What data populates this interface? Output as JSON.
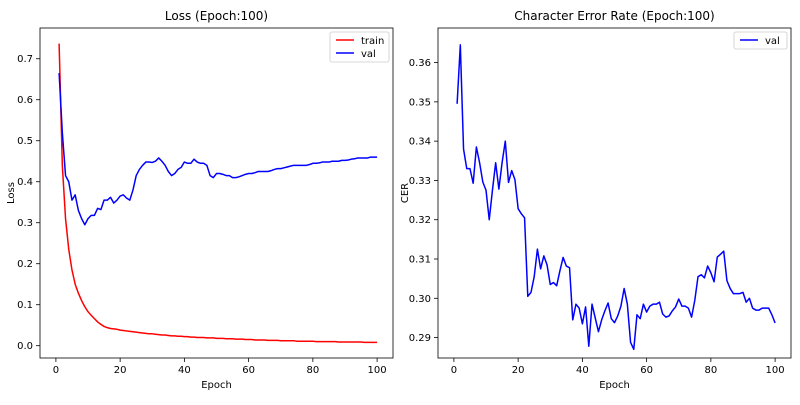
{
  "colors": {
    "train": "#ff0000",
    "val": "#0000ff",
    "frame": "#000000",
    "legend_frame": "#cccccc"
  },
  "chart_data": [
    {
      "type": "line",
      "title": "Loss (Epoch:100)",
      "xlabel": "Epoch",
      "ylabel": "Loss",
      "xlim": [
        -4.95,
        104.95
      ],
      "ylim": [
        -0.03,
        0.775
      ],
      "xticks": [
        0,
        20,
        40,
        60,
        80,
        100
      ],
      "xtick_labels": [
        "0",
        "20",
        "40",
        "60",
        "80",
        "100"
      ],
      "yticks": [
        0.0,
        0.1,
        0.2,
        0.3,
        0.4,
        0.5,
        0.6,
        0.7
      ],
      "ytick_labels": [
        "0.0",
        "0.1",
        "0.2",
        "0.3",
        "0.4",
        "0.5",
        "0.6",
        "0.7"
      ],
      "grid": false,
      "legend_position": "top-right",
      "series": [
        {
          "name": "train",
          "color": "#ff0000",
          "x": [
            1,
            2,
            3,
            4,
            5,
            6,
            7,
            8,
            9,
            10,
            11,
            12,
            13,
            14,
            15,
            16,
            17,
            18,
            19,
            20,
            21,
            22,
            23,
            24,
            25,
            26,
            27,
            28,
            29,
            30,
            31,
            32,
            33,
            34,
            35,
            36,
            37,
            38,
            39,
            40,
            41,
            42,
            43,
            44,
            45,
            46,
            47,
            48,
            49,
            50,
            51,
            52,
            53,
            54,
            55,
            56,
            57,
            58,
            59,
            60,
            61,
            62,
            63,
            64,
            65,
            66,
            67,
            68,
            69,
            70,
            71,
            72,
            73,
            74,
            75,
            76,
            77,
            78,
            79,
            80,
            81,
            82,
            83,
            84,
            85,
            86,
            87,
            88,
            89,
            90,
            91,
            92,
            93,
            94,
            95,
            96,
            97,
            98,
            99,
            100
          ],
          "y": [
            0.737,
            0.44,
            0.31,
            0.235,
            0.185,
            0.15,
            0.128,
            0.11,
            0.095,
            0.083,
            0.074,
            0.066,
            0.058,
            0.052,
            0.047,
            0.044,
            0.042,
            0.041,
            0.04,
            0.038,
            0.037,
            0.036,
            0.035,
            0.034,
            0.033,
            0.032,
            0.031,
            0.03,
            0.029,
            0.029,
            0.028,
            0.027,
            0.026,
            0.026,
            0.025,
            0.024,
            0.024,
            0.023,
            0.023,
            0.022,
            0.022,
            0.021,
            0.021,
            0.02,
            0.02,
            0.02,
            0.019,
            0.019,
            0.019,
            0.018,
            0.018,
            0.018,
            0.017,
            0.017,
            0.017,
            0.016,
            0.016,
            0.016,
            0.015,
            0.015,
            0.015,
            0.014,
            0.014,
            0.014,
            0.014,
            0.013,
            0.013,
            0.013,
            0.013,
            0.012,
            0.012,
            0.012,
            0.012,
            0.012,
            0.011,
            0.011,
            0.011,
            0.011,
            0.011,
            0.011,
            0.01,
            0.01,
            0.01,
            0.01,
            0.01,
            0.01,
            0.01,
            0.009,
            0.009,
            0.009,
            0.009,
            0.009,
            0.009,
            0.009,
            0.009,
            0.008,
            0.008,
            0.008,
            0.008,
            0.008
          ]
        },
        {
          "name": "val",
          "color": "#0000ff",
          "x": [
            1,
            2,
            3,
            4,
            5,
            6,
            7,
            8,
            9,
            10,
            11,
            12,
            13,
            14,
            15,
            16,
            17,
            18,
            19,
            20,
            21,
            22,
            23,
            24,
            25,
            26,
            27,
            28,
            29,
            30,
            31,
            32,
            33,
            34,
            35,
            36,
            37,
            38,
            39,
            40,
            41,
            42,
            43,
            44,
            45,
            46,
            47,
            48,
            49,
            50,
            51,
            52,
            53,
            54,
            55,
            56,
            57,
            58,
            59,
            60,
            61,
            62,
            63,
            64,
            65,
            66,
            67,
            68,
            69,
            70,
            71,
            72,
            73,
            74,
            75,
            76,
            77,
            78,
            79,
            80,
            81,
            82,
            83,
            84,
            85,
            86,
            87,
            88,
            89,
            90,
            91,
            92,
            93,
            94,
            95,
            96,
            97,
            98,
            99,
            100
          ],
          "y": [
            0.665,
            0.52,
            0.415,
            0.4,
            0.355,
            0.368,
            0.33,
            0.31,
            0.295,
            0.31,
            0.318,
            0.318,
            0.335,
            0.332,
            0.355,
            0.355,
            0.362,
            0.348,
            0.355,
            0.365,
            0.368,
            0.36,
            0.355,
            0.38,
            0.415,
            0.43,
            0.44,
            0.448,
            0.448,
            0.447,
            0.45,
            0.458,
            0.45,
            0.44,
            0.425,
            0.415,
            0.42,
            0.43,
            0.435,
            0.448,
            0.445,
            0.445,
            0.455,
            0.448,
            0.445,
            0.445,
            0.44,
            0.415,
            0.41,
            0.42,
            0.42,
            0.418,
            0.415,
            0.415,
            0.41,
            0.41,
            0.412,
            0.415,
            0.418,
            0.42,
            0.42,
            0.422,
            0.425,
            0.425,
            0.425,
            0.425,
            0.427,
            0.43,
            0.432,
            0.432,
            0.434,
            0.436,
            0.438,
            0.44,
            0.44,
            0.44,
            0.44,
            0.44,
            0.442,
            0.445,
            0.445,
            0.446,
            0.448,
            0.448,
            0.448,
            0.45,
            0.45,
            0.45,
            0.452,
            0.452,
            0.453,
            0.455,
            0.456,
            0.458,
            0.458,
            0.458,
            0.458,
            0.46,
            0.46,
            0.46
          ]
        }
      ]
    },
    {
      "type": "line",
      "title": "Character Error Rate (Epoch:100)",
      "xlabel": "Epoch",
      "ylabel": "CER",
      "xlim": [
        -4.95,
        104.95
      ],
      "ylim": [
        0.2848,
        0.3688
      ],
      "xticks": [
        0,
        20,
        40,
        60,
        80,
        100
      ],
      "xtick_labels": [
        "0",
        "20",
        "40",
        "60",
        "80",
        "100"
      ],
      "yticks": [
        0.29,
        0.3,
        0.31,
        0.32,
        0.33,
        0.34,
        0.35,
        0.36
      ],
      "ytick_labels": [
        "0.29",
        "0.30",
        "0.31",
        "0.32",
        "0.33",
        "0.34",
        "0.35",
        "0.36"
      ],
      "grid": false,
      "legend_position": "top-right",
      "series": [
        {
          "name": "val",
          "color": "#0000ff",
          "x": [
            1,
            2,
            3,
            4,
            5,
            6,
            7,
            8,
            9,
            10,
            11,
            12,
            13,
            14,
            15,
            16,
            17,
            18,
            19,
            20,
            21,
            22,
            23,
            24,
            25,
            26,
            27,
            28,
            29,
            30,
            31,
            32,
            33,
            34,
            35,
            36,
            37,
            38,
            39,
            40,
            41,
            42,
            43,
            44,
            45,
            46,
            47,
            48,
            49,
            50,
            51,
            52,
            53,
            54,
            55,
            56,
            57,
            58,
            59,
            60,
            61,
            62,
            63,
            64,
            65,
            66,
            67,
            68,
            69,
            70,
            71,
            72,
            73,
            74,
            75,
            76,
            77,
            78,
            79,
            80,
            81,
            82,
            83,
            84,
            85,
            86,
            87,
            88,
            89,
            90,
            91,
            92,
            93,
            94,
            95,
            96,
            97,
            98,
            99,
            100
          ],
          "y": [
            0.3495,
            0.3645,
            0.338,
            0.333,
            0.333,
            0.3293,
            0.3385,
            0.3345,
            0.3296,
            0.3275,
            0.32,
            0.3275,
            0.3345,
            0.3278,
            0.3345,
            0.34,
            0.3295,
            0.3325,
            0.3302,
            0.3228,
            0.3215,
            0.3205,
            0.3005,
            0.3015,
            0.3055,
            0.3125,
            0.3075,
            0.3108,
            0.3085,
            0.3035,
            0.304,
            0.3032,
            0.307,
            0.3104,
            0.3082,
            0.3078,
            0.2945,
            0.2985,
            0.2975,
            0.2935,
            0.2978,
            0.2878,
            0.2985,
            0.295,
            0.2915,
            0.2945,
            0.2968,
            0.2988,
            0.2948,
            0.2938,
            0.2955,
            0.298,
            0.3025,
            0.2985,
            0.2888,
            0.287,
            0.2958,
            0.2948,
            0.2985,
            0.2965,
            0.298,
            0.2985,
            0.2985,
            0.299,
            0.296,
            0.2952,
            0.2955,
            0.2968,
            0.2978,
            0.2998,
            0.298,
            0.298,
            0.2975,
            0.2952,
            0.2995,
            0.3055,
            0.306,
            0.3052,
            0.3082,
            0.3065,
            0.3042,
            0.3105,
            0.3112,
            0.312,
            0.3045,
            0.3025,
            0.3012,
            0.3012,
            0.3012,
            0.3015,
            0.299,
            0.3,
            0.2975,
            0.297,
            0.297,
            0.2975,
            0.2975,
            0.2975,
            0.2958,
            0.2937
          ]
        }
      ]
    }
  ]
}
